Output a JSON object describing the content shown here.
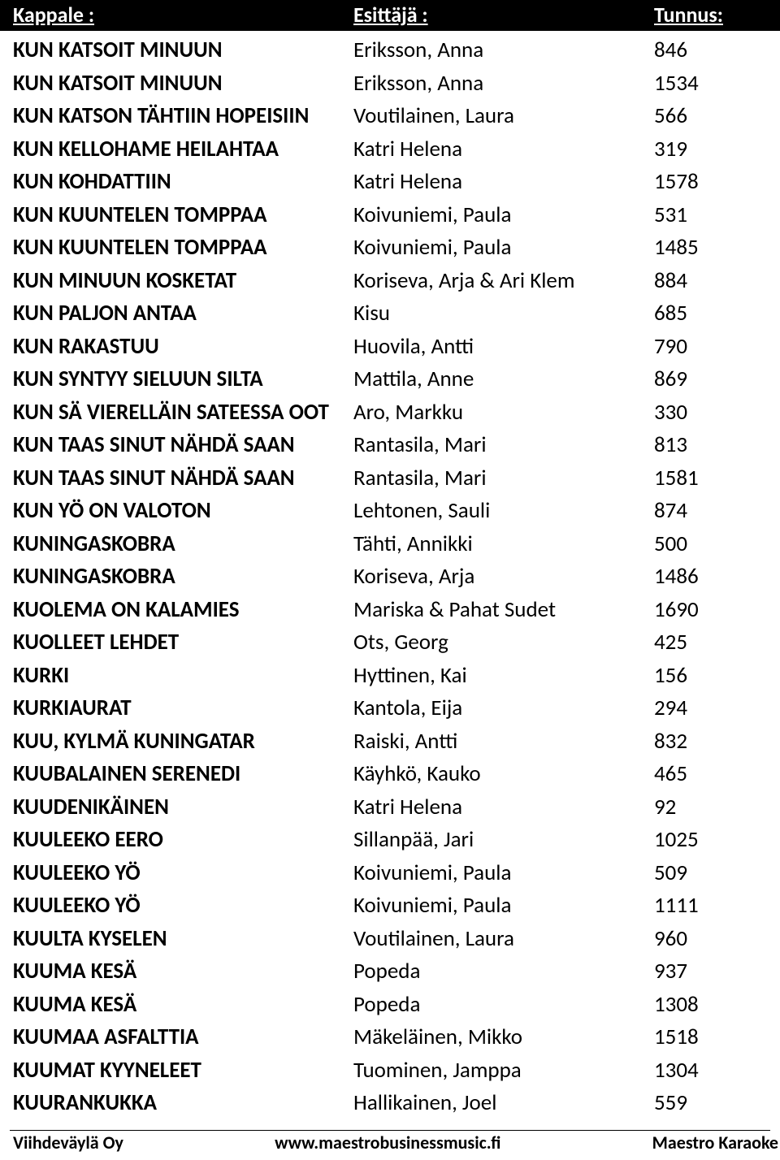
{
  "header": {
    "song_label": "Kappale :",
    "artist_label": "Esittäjä :",
    "id_label": "Tunnus:"
  },
  "rows": [
    {
      "song": "KUN KATSOIT MINUUN",
      "artist": "Eriksson, Anna",
      "id": "846"
    },
    {
      "song": "KUN KATSOIT MINUUN",
      "artist": "Eriksson, Anna",
      "id": "1534"
    },
    {
      "song": "KUN KATSON TÄHTIIN HOPEISIIN",
      "artist": "Voutilainen, Laura",
      "id": "566"
    },
    {
      "song": "KUN KELLOHAME HEILAHTAA",
      "artist": "Katri Helena",
      "id": "319"
    },
    {
      "song": "KUN KOHDATTIIN",
      "artist": "Katri Helena",
      "id": "1578"
    },
    {
      "song": "KUN KUUNTELEN TOMPPAA",
      "artist": "Koivuniemi, Paula",
      "id": "531"
    },
    {
      "song": "KUN KUUNTELEN TOMPPAA",
      "artist": "Koivuniemi, Paula",
      "id": "1485"
    },
    {
      "song": "KUN MINUUN KOSKETAT",
      "artist": "Koriseva, Arja & Ari Klem",
      "id": "884"
    },
    {
      "song": "KUN PALJON ANTAA",
      "artist": "Kisu",
      "id": "685"
    },
    {
      "song": "KUN RAKASTUU",
      "artist": "Huovila, Antti",
      "id": "790"
    },
    {
      "song": "KUN SYNTYY SIELUUN SILTA",
      "artist": "Mattila, Anne",
      "id": "869"
    },
    {
      "song": "KUN SÄ VIERELLÄIN SATEESSA OOT",
      "artist": "Aro, Markku",
      "id": "330"
    },
    {
      "song": "KUN TAAS SINUT NÄHDÄ SAAN",
      "artist": "Rantasila, Mari",
      "id": "813"
    },
    {
      "song": "KUN TAAS SINUT NÄHDÄ SAAN",
      "artist": "Rantasila, Mari",
      "id": "1581"
    },
    {
      "song": "KUN YÖ ON VALOTON",
      "artist": "Lehtonen, Sauli",
      "id": "874"
    },
    {
      "song": "KUNINGASKOBRA",
      "artist": "Tähti, Annikki",
      "id": "500"
    },
    {
      "song": "KUNINGASKOBRA",
      "artist": "Koriseva, Arja",
      "id": "1486"
    },
    {
      "song": "KUOLEMA ON KALAMIES",
      "artist": "Mariska & Pahat Sudet",
      "id": "1690"
    },
    {
      "song": "KUOLLEET LEHDET",
      "artist": "Ots, Georg",
      "id": "425"
    },
    {
      "song": "KURKI",
      "artist": "Hyttinen, Kai",
      "id": "156"
    },
    {
      "song": "KURKIAURAT",
      "artist": "Kantola, Eija",
      "id": "294"
    },
    {
      "song": "KUU, KYLMÄ KUNINGATAR",
      "artist": "Raiski, Antti",
      "id": "832"
    },
    {
      "song": "KUUBALAINEN SERENEDI",
      "artist": "Käyhkö, Kauko",
      "id": "465"
    },
    {
      "song": "KUUDENIKÄINEN",
      "artist": "Katri Helena",
      "id": "92"
    },
    {
      "song": "KUULEEKO EERO",
      "artist": "Sillanpää, Jari",
      "id": "1025"
    },
    {
      "song": "KUULEEKO YÖ",
      "artist": "Koivuniemi, Paula",
      "id": "509"
    },
    {
      "song": "KUULEEKO YÖ",
      "artist": "Koivuniemi, Paula",
      "id": "1111"
    },
    {
      "song": "KUULTA KYSELEN",
      "artist": "Voutilainen, Laura",
      "id": "960"
    },
    {
      "song": "KUUMA KESÄ",
      "artist": "Popeda",
      "id": "937"
    },
    {
      "song": "KUUMA KESÄ",
      "artist": "Popeda",
      "id": "1308"
    },
    {
      "song": "KUUMAA ASFALTTIA",
      "artist": "Mäkeläinen, Mikko",
      "id": "1518"
    },
    {
      "song": "KUUMAT KYYNELEET",
      "artist": "Tuominen, Jamppa",
      "id": "1304"
    },
    {
      "song": "KUURANKUKKA",
      "artist": "Hallikainen, Joel",
      "id": "559"
    }
  ],
  "footer": {
    "left": "Viihdeväylä Oy",
    "center": "www.maestrobusinessmusic.fi",
    "right": "Maestro Karaoke"
  },
  "style": {
    "header_bg": "#000000",
    "header_fg": "#ffffff",
    "body_bg": "#ffffff",
    "text_color": "#000000",
    "font_family": "Calibri, 'Segoe UI', Arial, sans-serif",
    "header_fontsize": 26,
    "row_fontsize": 27,
    "footer_fontsize": 22,
    "col_widths": {
      "song": 435,
      "artist": 370,
      "id": 155
    }
  }
}
